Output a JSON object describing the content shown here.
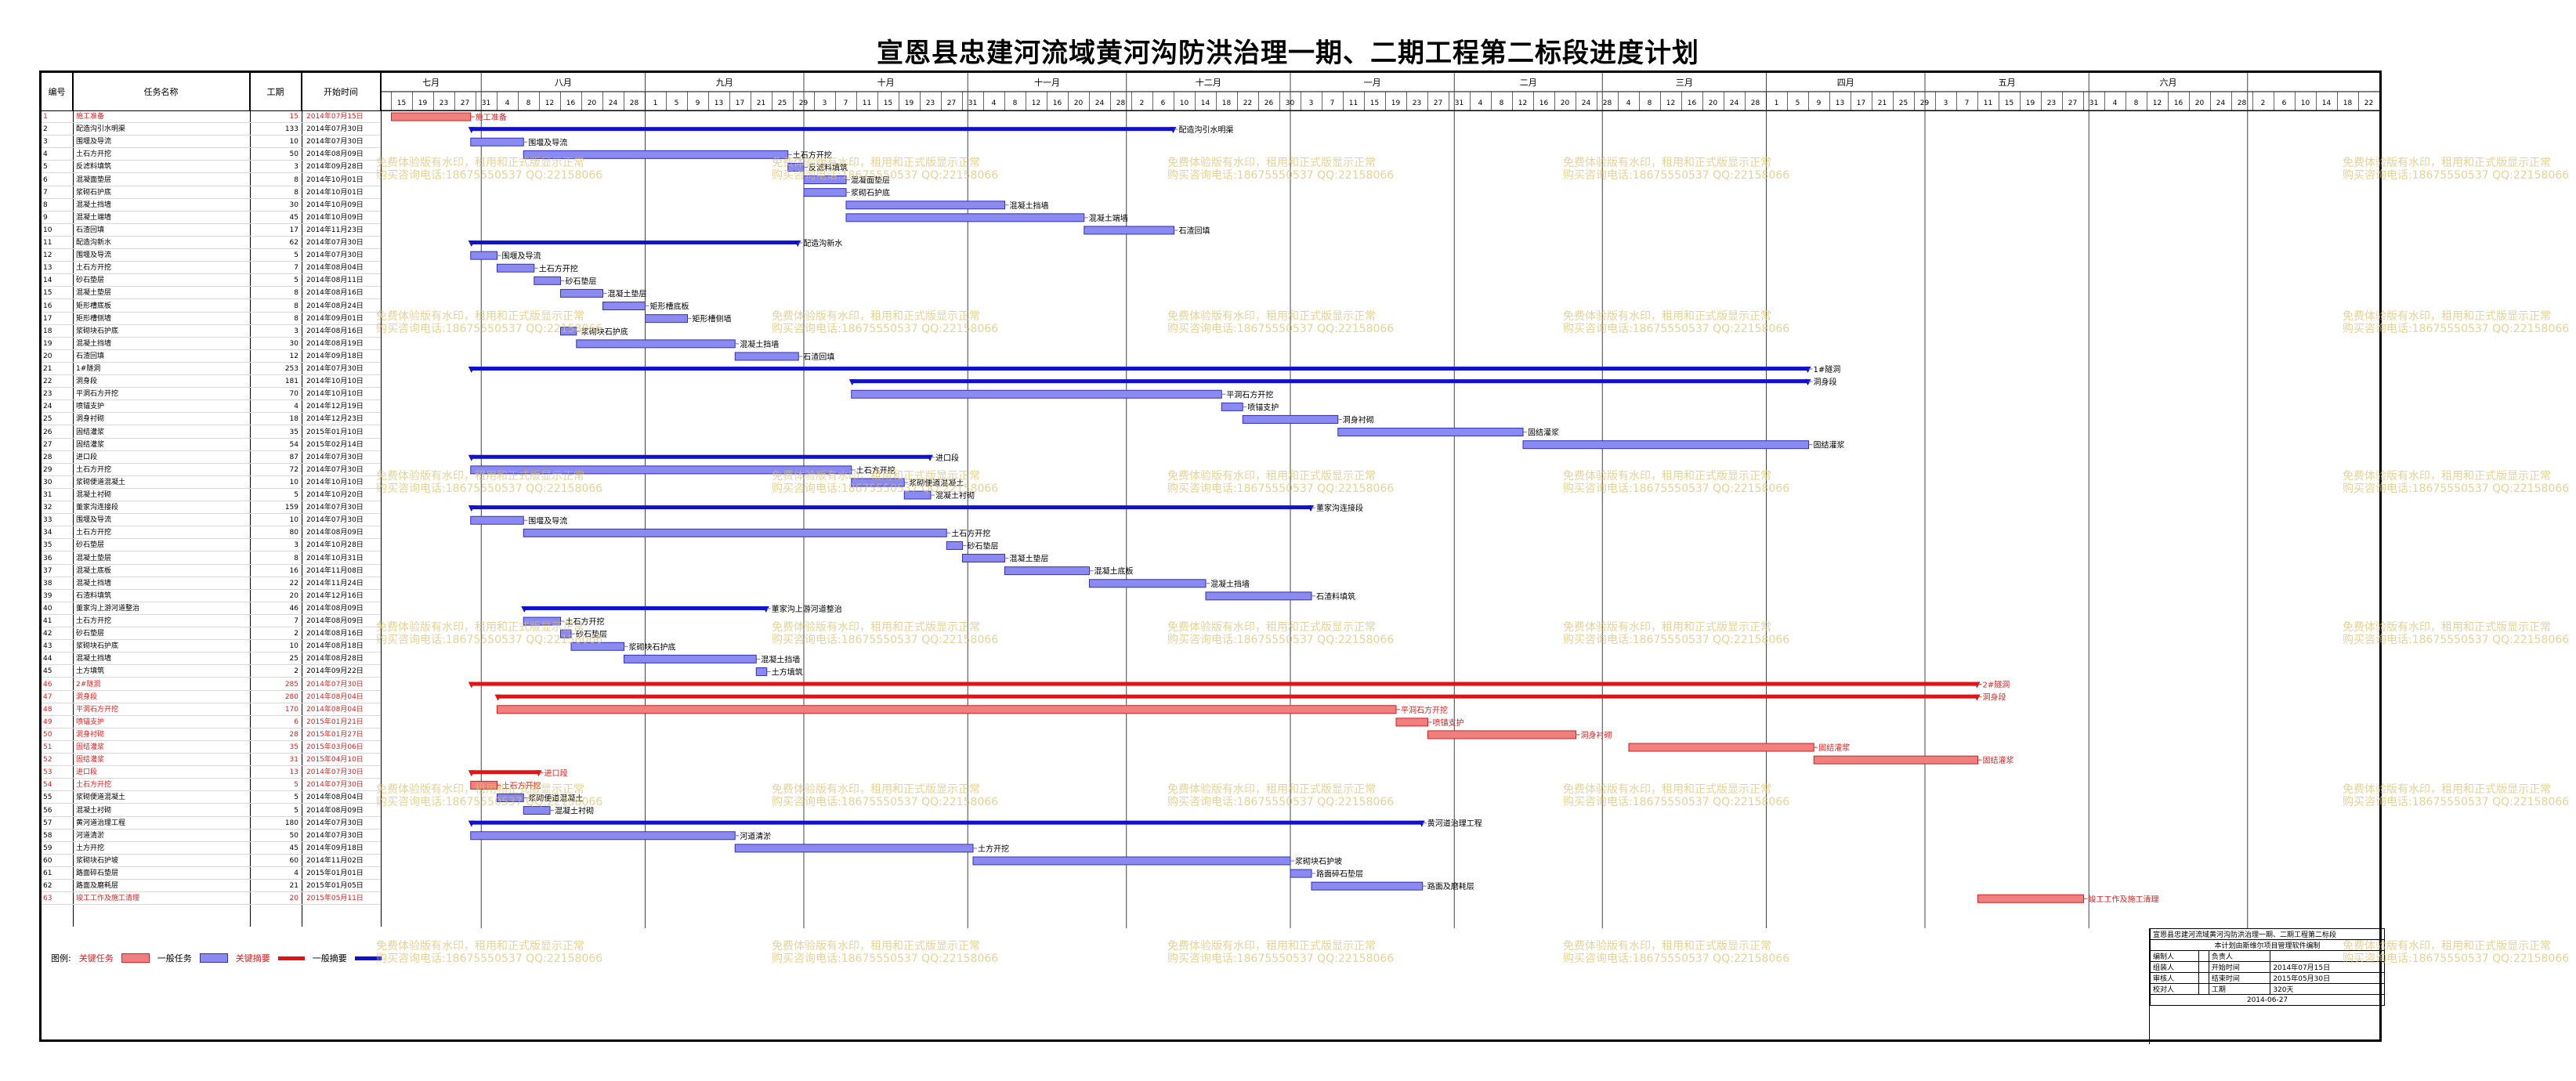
{
  "title": "宣恩县忠建河流域黄河沟防洪治理一期、二期工程第二标段进度计划",
  "headers": {
    "no": "编号",
    "name": "任务名称",
    "duration": "工期",
    "start": "开始时间"
  },
  "months": [
    "七月",
    "八月",
    "九月",
    "十月",
    "十一月",
    "十二月",
    "一月",
    "二月",
    "三月",
    "四月",
    "五月",
    "六月"
  ],
  "tasks": [
    {
      "no": "1",
      "name": "施工准备",
      "dur": "15",
      "start": "2014年07月15日",
      "crit": true
    },
    {
      "no": "2",
      "name": "配造沟引水明渠",
      "dur": "133",
      "start": "2014年07月30日"
    },
    {
      "no": "3",
      "name": "围堰及导流",
      "dur": "10",
      "start": "2014年07月30日"
    },
    {
      "no": "4",
      "name": "土石方开挖",
      "dur": "50",
      "start": "2014年08月09日"
    },
    {
      "no": "5",
      "name": "反滤料填筑",
      "dur": "3",
      "start": "2014年09月28日"
    },
    {
      "no": "6",
      "name": "混凝面垫层",
      "dur": "8",
      "start": "2014年10月01日"
    },
    {
      "no": "7",
      "name": "浆砌石护底",
      "dur": "8",
      "start": "2014年10月01日"
    },
    {
      "no": "8",
      "name": "混凝土挡墙",
      "dur": "30",
      "start": "2014年10月09日"
    },
    {
      "no": "9",
      "name": "混凝土端墙",
      "dur": "45",
      "start": "2014年10月09日"
    },
    {
      "no": "10",
      "name": "石渣回填",
      "dur": "17",
      "start": "2014年11月23日"
    },
    {
      "no": "11",
      "name": "配造沟新水",
      "dur": "62",
      "start": "2014年07月30日"
    },
    {
      "no": "12",
      "name": "围堰及导流",
      "dur": "5",
      "start": "2014年07月30日"
    },
    {
      "no": "13",
      "name": "土石方开挖",
      "dur": "7",
      "start": "2014年08月04日"
    },
    {
      "no": "14",
      "name": "砂石垫层",
      "dur": "5",
      "start": "2014年08月11日"
    },
    {
      "no": "15",
      "name": "混凝土垫层",
      "dur": "8",
      "start": "2014年08月16日"
    },
    {
      "no": "16",
      "name": "矩形槽底板",
      "dur": "8",
      "start": "2014年08月24日"
    },
    {
      "no": "17",
      "name": "矩形槽侧墙",
      "dur": "8",
      "start": "2014年09月01日"
    },
    {
      "no": "18",
      "name": "浆砌块石护底",
      "dur": "3",
      "start": "2014年08月16日"
    },
    {
      "no": "19",
      "name": "混凝土挡墙",
      "dur": "30",
      "start": "2014年08月19日"
    },
    {
      "no": "20",
      "name": "石渣回填",
      "dur": "12",
      "start": "2014年09月18日"
    },
    {
      "no": "21",
      "name": "1#隧洞",
      "dur": "253",
      "start": "2014年07月30日"
    },
    {
      "no": "22",
      "name": "洞身段",
      "dur": "181",
      "start": "2014年10月10日"
    },
    {
      "no": "23",
      "name": "平洞石方开挖",
      "dur": "70",
      "start": "2014年10月10日"
    },
    {
      "no": "24",
      "name": "喷锚支护",
      "dur": "4",
      "start": "2014年12月19日"
    },
    {
      "no": "25",
      "name": "洞身衬砌",
      "dur": "18",
      "start": "2014年12月23日"
    },
    {
      "no": "26",
      "name": "固结灌浆",
      "dur": "35",
      "start": "2015年01月10日"
    },
    {
      "no": "27",
      "name": "固结灌浆",
      "dur": "54",
      "start": "2015年02月14日"
    },
    {
      "no": "28",
      "name": "进口段",
      "dur": "87",
      "start": "2014年07月30日"
    },
    {
      "no": "29",
      "name": "土石方开挖",
      "dur": "72",
      "start": "2014年07月30日"
    },
    {
      "no": "30",
      "name": "浆砌便道混凝土",
      "dur": "10",
      "start": "2014年10月10日"
    },
    {
      "no": "31",
      "name": "混凝土衬砌",
      "dur": "5",
      "start": "2014年10月20日"
    },
    {
      "no": "32",
      "name": "董家沟连接段",
      "dur": "159",
      "start": "2014年07月30日"
    },
    {
      "no": "33",
      "name": "围堰及导流",
      "dur": "10",
      "start": "2014年07月30日"
    },
    {
      "no": "34",
      "name": "土石方开挖",
      "dur": "80",
      "start": "2014年08月09日"
    },
    {
      "no": "35",
      "name": "砂石垫层",
      "dur": "3",
      "start": "2014年10月28日"
    },
    {
      "no": "36",
      "name": "混凝土垫层",
      "dur": "8",
      "start": "2014年10月31日"
    },
    {
      "no": "37",
      "name": "混凝土底板",
      "dur": "16",
      "start": "2014年11月08日"
    },
    {
      "no": "38",
      "name": "混凝土挡墙",
      "dur": "22",
      "start": "2014年11月24日"
    },
    {
      "no": "39",
      "name": "石渣料填筑",
      "dur": "20",
      "start": "2014年12月16日"
    },
    {
      "no": "40",
      "name": "董家沟上游河道整治",
      "dur": "46",
      "start": "2014年08月09日"
    },
    {
      "no": "41",
      "name": "土石方开挖",
      "dur": "7",
      "start": "2014年08月09日"
    },
    {
      "no": "42",
      "name": "砂石垫层",
      "dur": "2",
      "start": "2014年08月16日"
    },
    {
      "no": "43",
      "name": "浆砌块石护底",
      "dur": "10",
      "start": "2014年08月18日"
    },
    {
      "no": "44",
      "name": "混凝土挡墙",
      "dur": "25",
      "start": "2014年08月28日"
    },
    {
      "no": "45",
      "name": "土方填筑",
      "dur": "2",
      "start": "2014年09月22日"
    },
    {
      "no": "46",
      "name": "2#隧洞",
      "dur": "285",
      "start": "2014年07月30日",
      "crit": true
    },
    {
      "no": "47",
      "name": "洞身段",
      "dur": "280",
      "start": "2014年08月04日",
      "crit": true
    },
    {
      "no": "48",
      "name": "平洞石方开挖",
      "dur": "170",
      "start": "2014年08月04日",
      "crit": true
    },
    {
      "no": "49",
      "name": "喷锚支护",
      "dur": "6",
      "start": "2015年01月21日",
      "crit": true
    },
    {
      "no": "50",
      "name": "洞身衬砌",
      "dur": "28",
      "start": "2015年01月27日",
      "crit": true
    },
    {
      "no": "51",
      "name": "固结灌浆",
      "dur": "35",
      "start": "2015年03月06日",
      "crit": true
    },
    {
      "no": "52",
      "name": "固结灌浆",
      "dur": "31",
      "start": "2015年04月10日",
      "crit": true
    },
    {
      "no": "53",
      "name": "进口段",
      "dur": "13",
      "start": "2014年07月30日",
      "crit": true
    },
    {
      "no": "54",
      "name": "土石方开挖",
      "dur": "5",
      "start": "2014年07月30日",
      "crit": true
    },
    {
      "no": "55",
      "name": "浆砌便道混凝土",
      "dur": "5",
      "start": "2014年08月04日"
    },
    {
      "no": "56",
      "name": "混凝土衬砌",
      "dur": "5",
      "start": "2014年08月09日"
    },
    {
      "no": "57",
      "name": "黄河道治理工程",
      "dur": "180",
      "start": "2014年07月30日"
    },
    {
      "no": "58",
      "name": "河道清淤",
      "dur": "50",
      "start": "2014年07月30日"
    },
    {
      "no": "59",
      "name": "土方开挖",
      "dur": "45",
      "start": "2014年09月18日"
    },
    {
      "no": "60",
      "name": "浆砌块石护坡",
      "dur": "60",
      "start": "2014年11月02日"
    },
    {
      "no": "61",
      "name": "路面碎石垫层",
      "dur": "4",
      "start": "2015年01月01日"
    },
    {
      "no": "62",
      "name": "路面及磨耗层",
      "dur": "21",
      "start": "2015年01月05日"
    },
    {
      "no": "63",
      "name": "竣工工作及施工清理",
      "dur": "20",
      "start": "2015年05月11日",
      "crit": true
    }
  ],
  "legend": {
    "l1": "图例:",
    "l2": "关键任务",
    "l3": "一般任务",
    "l4": "关键摘要",
    "l5": "一般摘要"
  },
  "info_table": {
    "title": "宣恩县忠建河流域黄河沟防洪治理一期、二期工程第二标段",
    "subtitle": "本计划由斯维尔项目管理软件编制",
    "r1": [
      "编制人",
      "",
      "负责人",
      ""
    ],
    "r2": [
      "组装人",
      "",
      "开始时间",
      "2014年07月15日"
    ],
    "r3": [
      "审核人",
      "",
      "结束时间",
      "2015年05月30日"
    ],
    "r4": [
      "校对人",
      "",
      "工期",
      "320天"
    ],
    "date": "2014-06-27"
  },
  "watermark": {
    "line1": "免费体验版有水印，租用和正式版显示正常",
    "line2": "购买咨询电话:18675550537 QQ:22158066"
  },
  "colors": {
    "crit": "#e83030",
    "normal": "#6a6ae8",
    "summary": "#1010d0"
  }
}
